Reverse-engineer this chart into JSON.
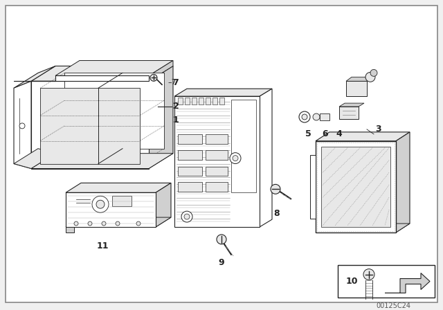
{
  "background_color": "#f0f0f0",
  "line_color": "#222222",
  "fill_white": "#ffffff",
  "fill_light": "#e8e8e8",
  "fill_mid": "#d0d0d0",
  "fill_dark": "#b0b0b0",
  "catalog_number": "00125C24",
  "figsize": [
    6.4,
    4.48
  ],
  "dpi": 100
}
